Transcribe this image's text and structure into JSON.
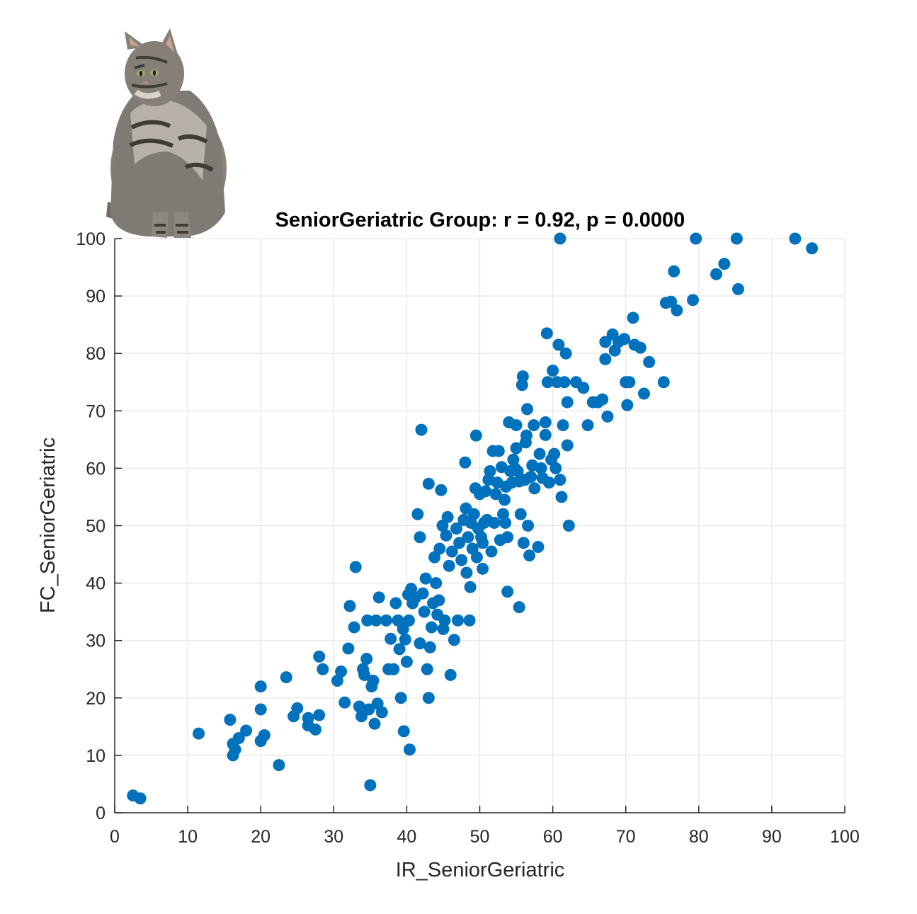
{
  "chart_data": {
    "type": "scatter",
    "title": "SeniorGeriatric Group: r = 0.92, p = 0.0000",
    "xlabel": "IR_SeniorGeriatric",
    "ylabel": "FC_SeniorGeriatric",
    "xlim": [
      0,
      100
    ],
    "ylim": [
      0,
      100
    ],
    "xticks": [
      "0",
      "10",
      "20",
      "30",
      "40",
      "50",
      "60",
      "70",
      "80",
      "90",
      "100"
    ],
    "yticks": [
      "0",
      "10",
      "20",
      "30",
      "40",
      "50",
      "60",
      "70",
      "80",
      "90",
      "100"
    ],
    "grid": true,
    "marker_color": "#0072BD",
    "decoration": "cat-photo",
    "points": [
      [
        2.5,
        3
      ],
      [
        3.5,
        2.5
      ],
      [
        11.5,
        13.8
      ],
      [
        15.8,
        16.2
      ],
      [
        16.2,
        12
      ],
      [
        16.2,
        10
      ],
      [
        16.5,
        11
      ],
      [
        17,
        13
      ],
      [
        18,
        14.3
      ],
      [
        20,
        18
      ],
      [
        20,
        22
      ],
      [
        20,
        12.5
      ],
      [
        20.5,
        13.5
      ],
      [
        22.5,
        8.3
      ],
      [
        23.5,
        23.6
      ],
      [
        24.5,
        16.8
      ],
      [
        25,
        18.2
      ],
      [
        26.5,
        16.5
      ],
      [
        26.5,
        15.2
      ],
      [
        27.5,
        14.5
      ],
      [
        28,
        17
      ],
      [
        28,
        27.2
      ],
      [
        28.5,
        25
      ],
      [
        30.5,
        23
      ],
      [
        31,
        24.6
      ],
      [
        31.5,
        19.2
      ],
      [
        32,
        28.6
      ],
      [
        32.2,
        36
      ],
      [
        32.8,
        32.3
      ],
      [
        33,
        42.8
      ],
      [
        33.5,
        18.5
      ],
      [
        33.8,
        16.8
      ],
      [
        34,
        25
      ],
      [
        34.2,
        24
      ],
      [
        34.5,
        26.8
      ],
      [
        34.6,
        33.5
      ],
      [
        34.8,
        18
      ],
      [
        35,
        4.8
      ],
      [
        35.2,
        22
      ],
      [
        35.4,
        23
      ],
      [
        35.6,
        15.5
      ],
      [
        35.8,
        33.5
      ],
      [
        36,
        19
      ],
      [
        36.2,
        37.5
      ],
      [
        36.6,
        17.5
      ],
      [
        37.2,
        33.5
      ],
      [
        37.5,
        25
      ],
      [
        37.8,
        30.3
      ],
      [
        38.2,
        25
      ],
      [
        38.5,
        36.5
      ],
      [
        38.8,
        33.5
      ],
      [
        39,
        28.5
      ],
      [
        39.2,
        20
      ],
      [
        39.5,
        32
      ],
      [
        39.6,
        14.2
      ],
      [
        39.8,
        30.2
      ],
      [
        40,
        26.3
      ],
      [
        40.2,
        38
      ],
      [
        40.3,
        33.5
      ],
      [
        40.4,
        11
      ],
      [
        40.6,
        39
      ],
      [
        40.8,
        36.5
      ],
      [
        41.2,
        37.5
      ],
      [
        41.5,
        52
      ],
      [
        41.8,
        48
      ],
      [
        41.8,
        29.5
      ],
      [
        42,
        66.7
      ],
      [
        42.2,
        38.2
      ],
      [
        42.4,
        35
      ],
      [
        42.6,
        40.8
      ],
      [
        42.8,
        25
      ],
      [
        43,
        20
      ],
      [
        43,
        57.3
      ],
      [
        43.2,
        28.8
      ],
      [
        43.4,
        32.3
      ],
      [
        43.6,
        36.5
      ],
      [
        43.8,
        44.5
      ],
      [
        44,
        40
      ],
      [
        44.2,
        34.5
      ],
      [
        44.4,
        37
      ],
      [
        44.5,
        46
      ],
      [
        44.7,
        56.2
      ],
      [
        44.9,
        50
      ],
      [
        45,
        32
      ],
      [
        45.2,
        33.5
      ],
      [
        45.4,
        48.3
      ],
      [
        45.6,
        51.5
      ],
      [
        45.8,
        43
      ],
      [
        46,
        24
      ],
      [
        46.2,
        45.5
      ],
      [
        46.5,
        30.1
      ],
      [
        46.8,
        49.5
      ],
      [
        47,
        33.5
      ],
      [
        47.2,
        47
      ],
      [
        47.5,
        44
      ],
      [
        47.8,
        51
      ],
      [
        48,
        61
      ],
      [
        48.1,
        53
      ],
      [
        48.2,
        41.8
      ],
      [
        48.4,
        48
      ],
      [
        48.6,
        33.5
      ],
      [
        48.7,
        39.3
      ],
      [
        48.8,
        50.5
      ],
      [
        49,
        46
      ],
      [
        49.2,
        52
      ],
      [
        49.4,
        56.5
      ],
      [
        49.5,
        65.7
      ],
      [
        49.6,
        44.5
      ],
      [
        49.8,
        49.5
      ],
      [
        50,
        55.5
      ],
      [
        50.2,
        48
      ],
      [
        50.4,
        47
      ],
      [
        50.4,
        42.5
      ],
      [
        50.6,
        50.5
      ],
      [
        50.8,
        56
      ],
      [
        51,
        51
      ],
      [
        51.2,
        58
      ],
      [
        51.4,
        59.5
      ],
      [
        51.6,
        45.5
      ],
      [
        51.8,
        63
      ],
      [
        52,
        50.5
      ],
      [
        52.2,
        55.5
      ],
      [
        52.4,
        57.5
      ],
      [
        52.6,
        63
      ],
      [
        52.8,
        47.5
      ],
      [
        53,
        60.2
      ],
      [
        53.2,
        52
      ],
      [
        53.4,
        54.5
      ],
      [
        53.5,
        50.5
      ],
      [
        53.6,
        56.8
      ],
      [
        53.8,
        48
      ],
      [
        53.8,
        38.5
      ],
      [
        54,
        68
      ],
      [
        54.2,
        59.5
      ],
      [
        54.4,
        57.5
      ],
      [
        54.6,
        61.5
      ],
      [
        54.8,
        60
      ],
      [
        55,
        63.5
      ],
      [
        55,
        67.5
      ],
      [
        55.2,
        59.5
      ],
      [
        55.4,
        57.7
      ],
      [
        55.4,
        35.8
      ],
      [
        55.6,
        52
      ],
      [
        55.8,
        74.5
      ],
      [
        55.9,
        76
      ],
      [
        56,
        47
      ],
      [
        56.2,
        58
      ],
      [
        56.3,
        64.5
      ],
      [
        56.4,
        65.7
      ],
      [
        56.5,
        70.3
      ],
      [
        56.6,
        50
      ],
      [
        56.8,
        44.8
      ],
      [
        57,
        58.5
      ],
      [
        57.2,
        60.5
      ],
      [
        57.4,
        67.5
      ],
      [
        57.5,
        56.5
      ],
      [
        58,
        46.3
      ],
      [
        58.2,
        62.5
      ],
      [
        58.4,
        60
      ],
      [
        58.6,
        58.3
      ],
      [
        59,
        65.8
      ],
      [
        59,
        68
      ],
      [
        59.2,
        83.5
      ],
      [
        59.3,
        75
      ],
      [
        59.5,
        57.5
      ],
      [
        59.8,
        61.5
      ],
      [
        60,
        77
      ],
      [
        60.2,
        62.5
      ],
      [
        60.4,
        60
      ],
      [
        60.6,
        75
      ],
      [
        60.8,
        81.5
      ],
      [
        61,
        100
      ],
      [
        61,
        58
      ],
      [
        61.2,
        55
      ],
      [
        61.4,
        67.5
      ],
      [
        61.6,
        75
      ],
      [
        61.8,
        80
      ],
      [
        62,
        71.5
      ],
      [
        62,
        64
      ],
      [
        62.2,
        50
      ],
      [
        63.2,
        75
      ],
      [
        64.2,
        74
      ],
      [
        64.8,
        67.5
      ],
      [
        65.5,
        71.5
      ],
      [
        66.2,
        71.5
      ],
      [
        66.8,
        72
      ],
      [
        67.2,
        79
      ],
      [
        67.2,
        82
      ],
      [
        67.5,
        69
      ],
      [
        68.2,
        83.3
      ],
      [
        68.5,
        80.5
      ],
      [
        69,
        82
      ],
      [
        69.8,
        82.5
      ],
      [
        70,
        75
      ],
      [
        70.2,
        71
      ],
      [
        70.5,
        75
      ],
      [
        71,
        86.2
      ],
      [
        71.2,
        81.5
      ],
      [
        72,
        81
      ],
      [
        72.5,
        73
      ],
      [
        73.2,
        78.5
      ],
      [
        75.2,
        75
      ],
      [
        75.5,
        88.8
      ],
      [
        76.2,
        89
      ],
      [
        76.6,
        94.3
      ],
      [
        77,
        87.5
      ],
      [
        79.2,
        89.3
      ],
      [
        79.6,
        100
      ],
      [
        82.4,
        93.8
      ],
      [
        83.5,
        95.6
      ],
      [
        85.2,
        100
      ],
      [
        85.4,
        91.2
      ],
      [
        93.2,
        100
      ],
      [
        95.5,
        98.3
      ]
    ]
  }
}
